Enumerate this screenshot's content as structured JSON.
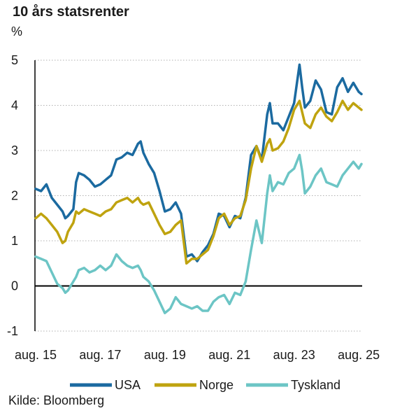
{
  "chart_data": {
    "type": "line",
    "title": "10 års statsrenter",
    "unit": "%",
    "source": "Kilde: Bloomberg",
    "x_ticks": [
      "aug. 15",
      "aug. 17",
      "aug. 19",
      "aug. 21",
      "aug. 23",
      "aug. 25"
    ],
    "y_ticks": [
      -1,
      0,
      1,
      2,
      3,
      4,
      5
    ],
    "ylim": [
      -1,
      5
    ],
    "grid": "horizontal dotted",
    "legend_position": "bottom",
    "series": [
      {
        "name": "USA",
        "color": "#1b6aa0",
        "x": [
          2015.583,
          2015.75,
          2015.917,
          2016.083,
          2016.25,
          2016.417,
          2016.5,
          2016.583,
          2016.75,
          2016.833,
          2016.917,
          2017.083,
          2017.25,
          2017.417,
          2017.583,
          2017.75,
          2017.917,
          2018.083,
          2018.25,
          2018.417,
          2018.583,
          2018.75,
          2018.833,
          2018.917,
          2019.083,
          2019.25,
          2019.417,
          2019.583,
          2019.75,
          2019.917,
          2020.083,
          2020.25,
          2020.417,
          2020.583,
          2020.75,
          2020.917,
          2021.083,
          2021.25,
          2021.417,
          2021.583,
          2021.75,
          2021.917,
          2022.083,
          2022.25,
          2022.417,
          2022.583,
          2022.75,
          2022.833,
          2022.917,
          2023.083,
          2023.25,
          2023.417,
          2023.583,
          2023.75,
          2023.833,
          2023.917,
          2024.083,
          2024.25,
          2024.417,
          2024.583,
          2024.75,
          2024.917,
          2025.083,
          2025.25,
          2025.417,
          2025.583,
          2025.667
        ],
        "y": [
          2.15,
          2.1,
          2.25,
          1.95,
          1.8,
          1.65,
          1.5,
          1.55,
          1.7,
          2.3,
          2.5,
          2.45,
          2.35,
          2.2,
          2.25,
          2.35,
          2.45,
          2.8,
          2.85,
          2.95,
          2.9,
          3.15,
          3.2,
          2.95,
          2.7,
          2.5,
          2.1,
          1.65,
          1.7,
          1.85,
          1.6,
          0.65,
          0.7,
          0.55,
          0.75,
          0.9,
          1.15,
          1.6,
          1.55,
          1.3,
          1.55,
          1.5,
          1.95,
          2.9,
          3.1,
          2.8,
          3.8,
          4.05,
          3.6,
          3.6,
          3.45,
          3.75,
          4.05,
          4.9,
          4.4,
          3.95,
          4.1,
          4.55,
          4.35,
          3.85,
          3.8,
          4.4,
          4.6,
          4.3,
          4.5,
          4.3,
          4.25
        ]
      },
      {
        "name": "Norge",
        "color": "#bfa30f",
        "x": [
          2015.583,
          2015.75,
          2015.917,
          2016.083,
          2016.25,
          2016.417,
          2016.5,
          2016.583,
          2016.75,
          2016.833,
          2016.917,
          2017.083,
          2017.25,
          2017.417,
          2017.583,
          2017.75,
          2017.917,
          2018.083,
          2018.25,
          2018.417,
          2018.583,
          2018.75,
          2018.833,
          2018.917,
          2019.083,
          2019.25,
          2019.417,
          2019.583,
          2019.75,
          2019.917,
          2020.083,
          2020.25,
          2020.417,
          2020.583,
          2020.75,
          2020.917,
          2021.083,
          2021.25,
          2021.417,
          2021.583,
          2021.75,
          2021.917,
          2022.083,
          2022.25,
          2022.417,
          2022.583,
          2022.75,
          2022.833,
          2022.917,
          2023.083,
          2023.25,
          2023.417,
          2023.583,
          2023.75,
          2023.833,
          2023.917,
          2024.083,
          2024.25,
          2024.417,
          2024.583,
          2024.75,
          2024.917,
          2025.083,
          2025.25,
          2025.417,
          2025.583,
          2025.667
        ],
        "y": [
          1.5,
          1.6,
          1.5,
          1.35,
          1.2,
          0.95,
          1.0,
          1.2,
          1.4,
          1.65,
          1.6,
          1.7,
          1.65,
          1.6,
          1.55,
          1.65,
          1.7,
          1.85,
          1.9,
          1.95,
          1.85,
          1.95,
          1.85,
          1.8,
          1.85,
          1.6,
          1.35,
          1.15,
          1.2,
          1.35,
          1.45,
          0.5,
          0.6,
          0.6,
          0.7,
          0.8,
          1.1,
          1.5,
          1.6,
          1.35,
          1.5,
          1.55,
          1.9,
          2.6,
          3.1,
          2.75,
          3.15,
          3.25,
          3.0,
          3.05,
          3.2,
          3.5,
          3.9,
          4.1,
          3.85,
          3.6,
          3.5,
          3.8,
          3.95,
          3.75,
          3.65,
          3.85,
          4.1,
          3.9,
          4.05,
          3.95,
          3.9
        ]
      },
      {
        "name": "Tyskland",
        "color": "#6cc5c5",
        "x": [
          2015.583,
          2015.75,
          2015.917,
          2016.083,
          2016.25,
          2016.417,
          2016.5,
          2016.583,
          2016.75,
          2016.833,
          2016.917,
          2017.083,
          2017.25,
          2017.417,
          2017.583,
          2017.75,
          2017.917,
          2018.083,
          2018.25,
          2018.417,
          2018.583,
          2018.75,
          2018.833,
          2018.917,
          2019.083,
          2019.25,
          2019.417,
          2019.583,
          2019.75,
          2019.917,
          2020.083,
          2020.25,
          2020.417,
          2020.583,
          2020.75,
          2020.917,
          2021.083,
          2021.25,
          2021.417,
          2021.583,
          2021.75,
          2021.917,
          2022.083,
          2022.25,
          2022.417,
          2022.583,
          2022.75,
          2022.833,
          2022.917,
          2023.083,
          2023.25,
          2023.417,
          2023.583,
          2023.75,
          2023.833,
          2023.917,
          2024.083,
          2024.25,
          2024.417,
          2024.583,
          2024.75,
          2024.917,
          2025.083,
          2025.25,
          2025.417,
          2025.583,
          2025.667
        ],
        "y": [
          0.65,
          0.6,
          0.55,
          0.3,
          0.05,
          -0.05,
          -0.15,
          -0.1,
          0.1,
          0.2,
          0.35,
          0.4,
          0.3,
          0.35,
          0.45,
          0.35,
          0.45,
          0.7,
          0.55,
          0.45,
          0.4,
          0.45,
          0.35,
          0.2,
          0.1,
          -0.1,
          -0.35,
          -0.6,
          -0.5,
          -0.25,
          -0.4,
          -0.45,
          -0.5,
          -0.45,
          -0.55,
          -0.55,
          -0.35,
          -0.25,
          -0.2,
          -0.4,
          -0.15,
          -0.2,
          0.1,
          0.8,
          1.45,
          0.95,
          2.05,
          2.45,
          2.1,
          2.3,
          2.25,
          2.5,
          2.6,
          2.9,
          2.55,
          2.05,
          2.2,
          2.45,
          2.6,
          2.3,
          2.25,
          2.2,
          2.45,
          2.6,
          2.75,
          2.6,
          2.7
        ]
      }
    ]
  }
}
